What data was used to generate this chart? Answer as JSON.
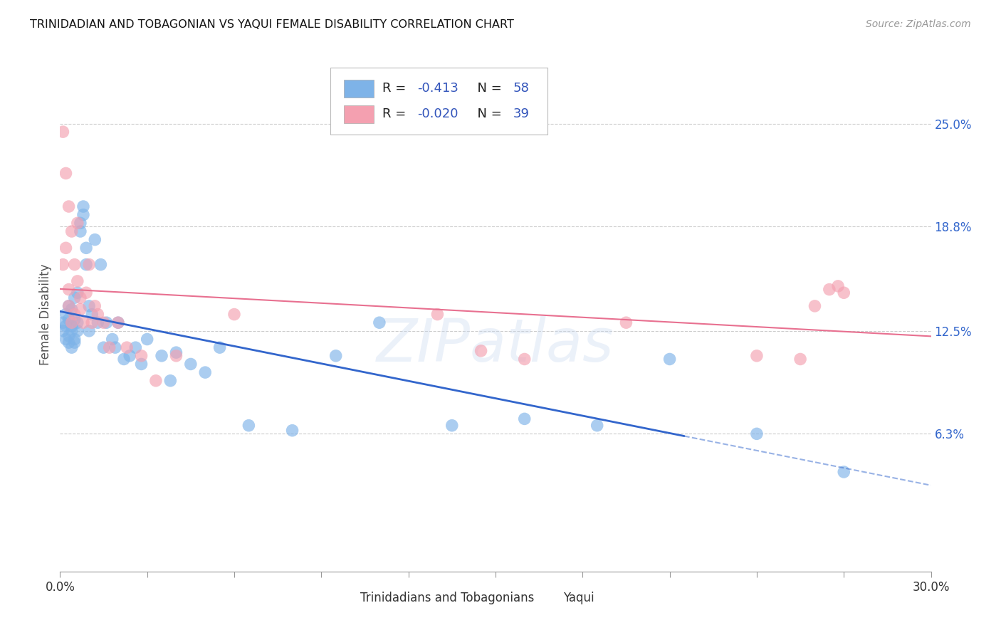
{
  "title": "TRINIDADIAN AND TOBAGONIAN VS YAQUI FEMALE DISABILITY CORRELATION CHART",
  "source": "Source: ZipAtlas.com",
  "ylabel": "Female Disability",
  "ytick_labels": [
    "25.0%",
    "18.8%",
    "12.5%",
    "6.3%"
  ],
  "ytick_values": [
    0.25,
    0.188,
    0.125,
    0.063
  ],
  "xlim": [
    0.0,
    0.3
  ],
  "ylim": [
    -0.02,
    0.29
  ],
  "legend_label1": "Trinidadians and Tobagonians",
  "legend_label2": "Yaqui",
  "blue_color": "#7EB3E8",
  "pink_color": "#F4A0B0",
  "blue_line_color": "#3366CC",
  "pink_line_color": "#E87090",
  "blue_scatter_x": [
    0.001,
    0.001,
    0.002,
    0.002,
    0.002,
    0.003,
    0.003,
    0.003,
    0.003,
    0.004,
    0.004,
    0.004,
    0.004,
    0.005,
    0.005,
    0.005,
    0.005,
    0.006,
    0.006,
    0.006,
    0.007,
    0.007,
    0.008,
    0.008,
    0.009,
    0.009,
    0.01,
    0.01,
    0.011,
    0.012,
    0.013,
    0.014,
    0.015,
    0.016,
    0.018,
    0.019,
    0.02,
    0.022,
    0.024,
    0.026,
    0.028,
    0.03,
    0.035,
    0.038,
    0.04,
    0.045,
    0.05,
    0.055,
    0.065,
    0.08,
    0.095,
    0.11,
    0.135,
    0.16,
    0.185,
    0.21,
    0.24,
    0.27
  ],
  "blue_scatter_y": [
    0.13,
    0.125,
    0.128,
    0.12,
    0.135,
    0.132,
    0.118,
    0.14,
    0.122,
    0.125,
    0.115,
    0.138,
    0.128,
    0.145,
    0.12,
    0.132,
    0.118,
    0.148,
    0.125,
    0.13,
    0.19,
    0.185,
    0.195,
    0.2,
    0.165,
    0.175,
    0.14,
    0.125,
    0.135,
    0.18,
    0.13,
    0.165,
    0.115,
    0.13,
    0.12,
    0.115,
    0.13,
    0.108,
    0.11,
    0.115,
    0.105,
    0.12,
    0.11,
    0.095,
    0.112,
    0.105,
    0.1,
    0.115,
    0.068,
    0.065,
    0.11,
    0.13,
    0.068,
    0.072,
    0.068,
    0.108,
    0.063,
    0.04
  ],
  "pink_scatter_x": [
    0.001,
    0.001,
    0.002,
    0.002,
    0.003,
    0.003,
    0.003,
    0.004,
    0.004,
    0.005,
    0.005,
    0.006,
    0.006,
    0.007,
    0.007,
    0.008,
    0.009,
    0.01,
    0.011,
    0.012,
    0.013,
    0.015,
    0.017,
    0.02,
    0.023,
    0.028,
    0.033,
    0.04,
    0.06,
    0.13,
    0.145,
    0.16,
    0.195,
    0.24,
    0.255,
    0.26,
    0.265,
    0.268,
    0.27
  ],
  "pink_scatter_y": [
    0.245,
    0.165,
    0.22,
    0.175,
    0.2,
    0.14,
    0.15,
    0.185,
    0.13,
    0.165,
    0.135,
    0.19,
    0.155,
    0.145,
    0.138,
    0.13,
    0.148,
    0.165,
    0.13,
    0.14,
    0.135,
    0.13,
    0.115,
    0.13,
    0.115,
    0.11,
    0.095,
    0.11,
    0.135,
    0.135,
    0.113,
    0.108,
    0.13,
    0.11,
    0.108,
    0.14,
    0.15,
    0.152,
    0.148
  ]
}
